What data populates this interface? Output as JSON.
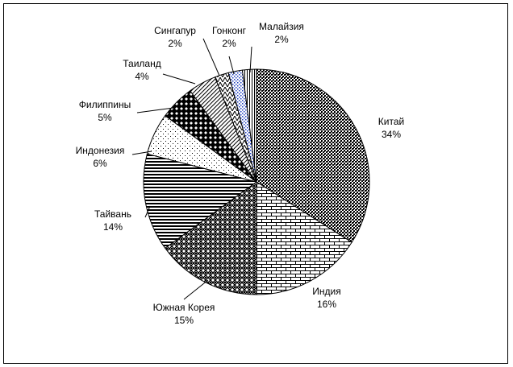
{
  "chart_data": {
    "type": "pie",
    "title": "",
    "slices": [
      {
        "label": "Китай",
        "value": 34,
        "pct_label": "34%",
        "pattern": "hatch-dense-dark"
      },
      {
        "label": "Индия",
        "value": 16,
        "pct_label": "16%",
        "pattern": "bricks"
      },
      {
        "label": "Южная Корея",
        "value": 15,
        "pct_label": "15%",
        "pattern": "checker"
      },
      {
        "label": "Тайвань",
        "value": 14,
        "pct_label": "14%",
        "pattern": "horizontal-lines"
      },
      {
        "label": "Индонезия",
        "value": 6,
        "pct_label": "6%",
        "pattern": "sparse-dots"
      },
      {
        "label": "Филиппины",
        "value": 5,
        "pct_label": "5%",
        "pattern": "black-diamonds"
      },
      {
        "label": "Таиланд",
        "value": 4,
        "pct_label": "4%",
        "pattern": "diagonal-lines"
      },
      {
        "label": "Сингапур",
        "value": 2,
        "pct_label": "2%",
        "pattern": "zigzag"
      },
      {
        "label": "Гонконг",
        "value": 2,
        "pct_label": "2%",
        "pattern": "blue-dots"
      },
      {
        "label": "Малайзия",
        "value": 2,
        "pct_label": "2%",
        "pattern": "vertical-lines"
      }
    ],
    "legend": "none",
    "colors": {
      "line": "#000000",
      "accent_dots": "#1f3fbf"
    }
  }
}
